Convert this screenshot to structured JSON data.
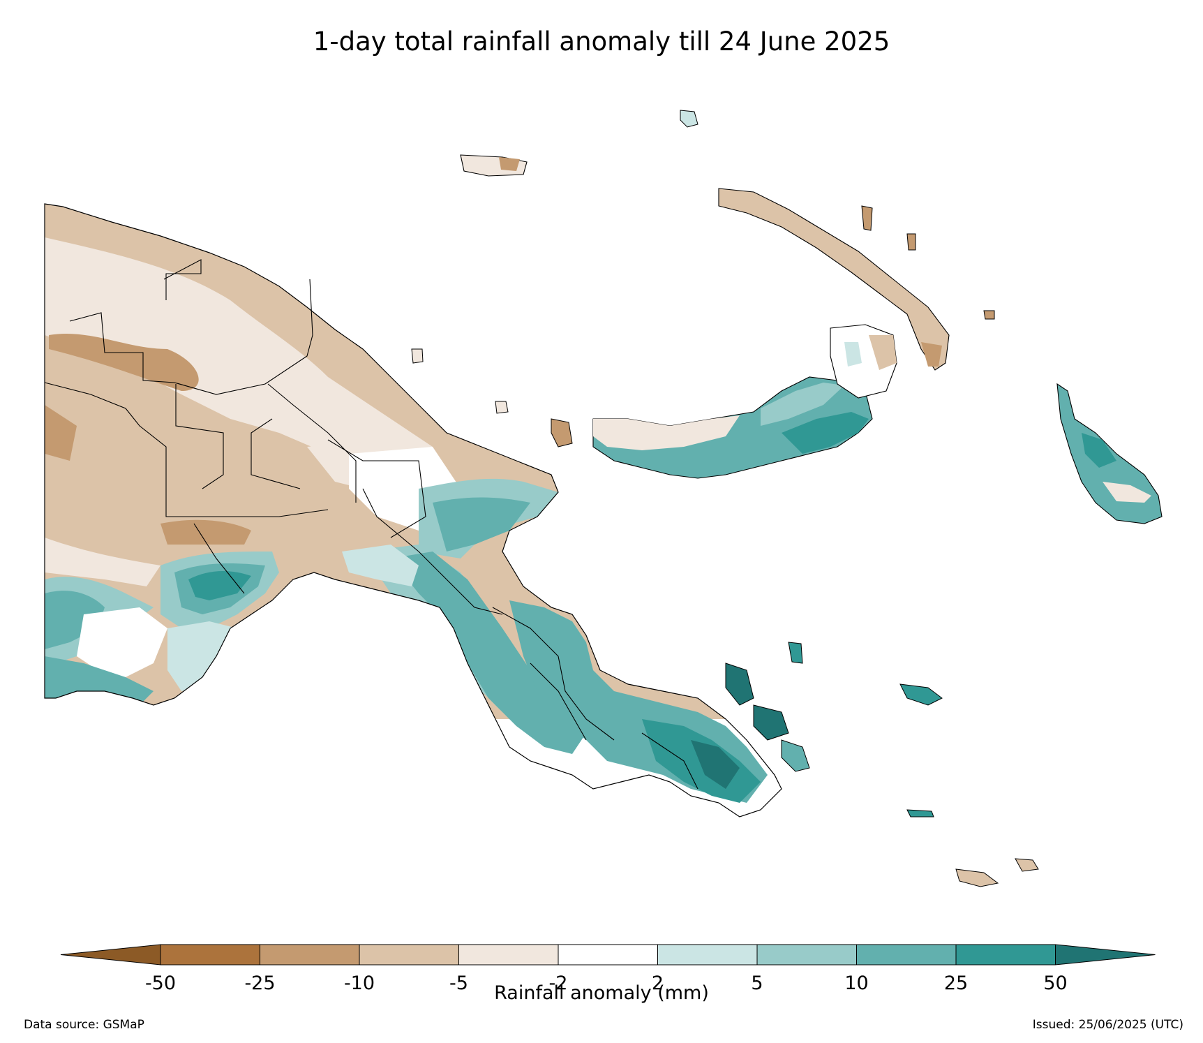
{
  "title": "1-day total rainfall anomaly till 24 June 2025",
  "colorbar": {
    "label": "Rainfall anomaly (mm)",
    "ticks": [
      "-50",
      "-25",
      "-10",
      "-5",
      "-2",
      "2",
      "5",
      "10",
      "25",
      "50"
    ],
    "under_color": "#8c5a26",
    "over_color": "#207473",
    "bins": [
      {
        "range": "-50 to -25",
        "color": "#ac733c"
      },
      {
        "range": "-25 to -10",
        "color": "#c49a70"
      },
      {
        "range": "-10 to -5",
        "color": "#dcc3a8"
      },
      {
        "range": "-5 to -2",
        "color": "#f1e7de"
      },
      {
        "range": "-2 to 2",
        "color": "#ffffff"
      },
      {
        "range": "2 to 5",
        "color": "#cbe5e4"
      },
      {
        "range": "5 to 10",
        "color": "#98cbc9"
      },
      {
        "range": "10 to 25",
        "color": "#62b0ae"
      },
      {
        "range": "25 to 50",
        "color": "#309894"
      }
    ]
  },
  "footer": {
    "source": "Data source: GSMaP",
    "issued": "Issued: 25/06/2025 (UTC)"
  }
}
